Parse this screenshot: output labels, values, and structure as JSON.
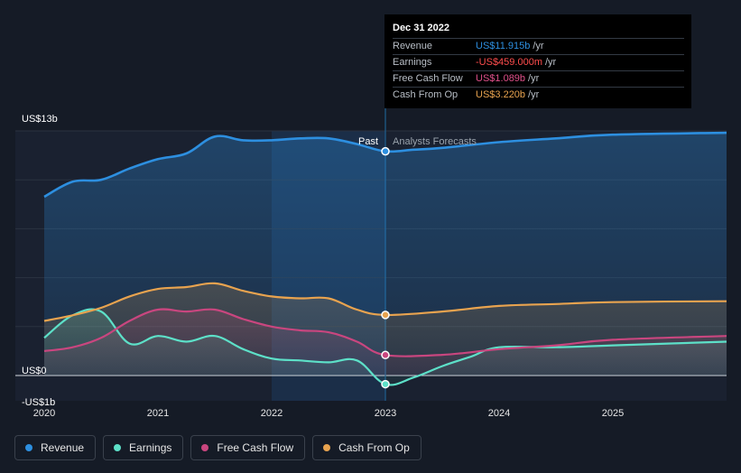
{
  "chart_data": {
    "type": "area",
    "x_unit": "year",
    "xlim": [
      2019.75,
      2025.98
    ],
    "ylim": [
      -1.05,
      13.05
    ],
    "y_axis_labels": [
      {
        "label": "US$13b",
        "value": 13
      },
      {
        "label": "US$0",
        "value": 0
      },
      {
        "label": "-US$1b",
        "value": -1
      }
    ],
    "x_ticks": [
      {
        "label": "2020",
        "value": 2020
      },
      {
        "label": "2021",
        "value": 2021
      },
      {
        "label": "2022",
        "value": 2022
      },
      {
        "label": "2023",
        "value": 2023
      },
      {
        "label": "2024",
        "value": 2024
      },
      {
        "label": "2025",
        "value": 2025
      }
    ],
    "past_label": "Past",
    "forecast_label": "Analysts Forecasts",
    "divider_x": 2023.0,
    "highlight_range": [
      2022.0,
      2023.0
    ],
    "series": [
      {
        "name": "Revenue",
        "color": "#2d8fe0",
        "points": [
          [
            2020.0,
            9.5
          ],
          [
            2020.25,
            10.3
          ],
          [
            2020.5,
            10.4
          ],
          [
            2020.75,
            11.0
          ],
          [
            2021.0,
            11.5
          ],
          [
            2021.25,
            11.8
          ],
          [
            2021.5,
            12.7
          ],
          [
            2021.75,
            12.5
          ],
          [
            2022.0,
            12.5
          ],
          [
            2022.25,
            12.6
          ],
          [
            2022.5,
            12.6
          ],
          [
            2022.75,
            12.3
          ],
          [
            2023.0,
            11.915
          ],
          [
            2023.25,
            12.0
          ],
          [
            2023.5,
            12.1
          ],
          [
            2024.0,
            12.4
          ],
          [
            2024.5,
            12.6
          ],
          [
            2025.0,
            12.8
          ],
          [
            2026.0,
            12.9
          ]
        ]
      },
      {
        "name": "Earnings",
        "color": "#5de0c8",
        "points": [
          [
            2020.0,
            2.0
          ],
          [
            2020.25,
            3.2
          ],
          [
            2020.5,
            3.4
          ],
          [
            2020.75,
            1.7
          ],
          [
            2021.0,
            2.1
          ],
          [
            2021.25,
            1.8
          ],
          [
            2021.5,
            2.1
          ],
          [
            2021.75,
            1.4
          ],
          [
            2022.0,
            0.9
          ],
          [
            2022.25,
            0.8
          ],
          [
            2022.5,
            0.7
          ],
          [
            2022.75,
            0.8
          ],
          [
            2023.0,
            -0.459
          ],
          [
            2023.25,
            -0.1
          ],
          [
            2023.5,
            0.5
          ],
          [
            2023.75,
            1.0
          ],
          [
            2024.0,
            1.5
          ],
          [
            2024.5,
            1.5
          ],
          [
            2025.0,
            1.6
          ],
          [
            2026.0,
            1.8
          ]
        ]
      },
      {
        "name": "Free Cash Flow",
        "color": "#c9467f",
        "points": [
          [
            2020.0,
            1.3
          ],
          [
            2020.25,
            1.5
          ],
          [
            2020.5,
            2.0
          ],
          [
            2020.75,
            2.9
          ],
          [
            2021.0,
            3.5
          ],
          [
            2021.25,
            3.4
          ],
          [
            2021.5,
            3.5
          ],
          [
            2021.75,
            3.0
          ],
          [
            2022.0,
            2.6
          ],
          [
            2022.25,
            2.4
          ],
          [
            2022.5,
            2.3
          ],
          [
            2022.75,
            1.8
          ],
          [
            2023.0,
            1.089
          ],
          [
            2023.5,
            1.1
          ],
          [
            2024.0,
            1.4
          ],
          [
            2024.5,
            1.6
          ],
          [
            2025.0,
            1.9
          ],
          [
            2026.0,
            2.1
          ]
        ]
      },
      {
        "name": "Cash From Op",
        "color": "#e8a34f",
        "points": [
          [
            2020.0,
            2.9
          ],
          [
            2020.25,
            3.2
          ],
          [
            2020.5,
            3.6
          ],
          [
            2020.75,
            4.2
          ],
          [
            2021.0,
            4.6
          ],
          [
            2021.25,
            4.7
          ],
          [
            2021.5,
            4.9
          ],
          [
            2021.75,
            4.5
          ],
          [
            2022.0,
            4.2
          ],
          [
            2022.25,
            4.1
          ],
          [
            2022.5,
            4.1
          ],
          [
            2022.75,
            3.5
          ],
          [
            2023.0,
            3.22
          ],
          [
            2023.5,
            3.4
          ],
          [
            2024.0,
            3.7
          ],
          [
            2024.5,
            3.8
          ],
          [
            2025.0,
            3.9
          ],
          [
            2026.0,
            3.95
          ]
        ]
      }
    ],
    "tooltip": {
      "date": "Dec 31 2022",
      "rows": [
        {
          "name": "Revenue",
          "value": "US$11.915b",
          "unit": "/yr",
          "color": "#2d8fe0"
        },
        {
          "name": "Earnings",
          "value": "-US$459.000m",
          "unit": "/yr",
          "color": "#ff4d4d"
        },
        {
          "name": "Free Cash Flow",
          "value": "US$1.089b",
          "unit": "/yr",
          "color": "#e0508a"
        },
        {
          "name": "Cash From Op",
          "value": "US$3.220b",
          "unit": "/yr",
          "color": "#e8a34f"
        }
      ]
    },
    "legend": [
      {
        "name": "Revenue",
        "color": "#2d8fe0"
      },
      {
        "name": "Earnings",
        "color": "#5de0c8"
      },
      {
        "name": "Free Cash Flow",
        "color": "#c9467f"
      },
      {
        "name": "Cash From Op",
        "color": "#e8a34f"
      }
    ]
  }
}
